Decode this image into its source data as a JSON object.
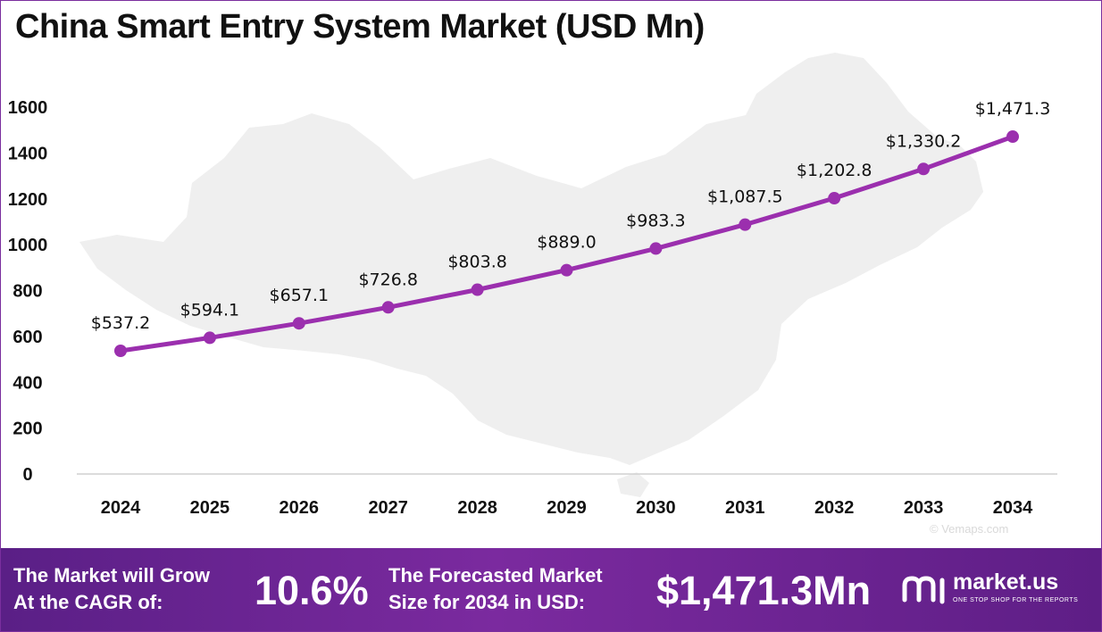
{
  "page": {
    "title": "China Smart Entry System Market (USD Mn)"
  },
  "map_credit": "© Vemaps.com",
  "chart_data": {
    "type": "line",
    "title": "China Smart Entry System Market (USD Mn)",
    "categories": [
      "2024",
      "2025",
      "2026",
      "2027",
      "2028",
      "2029",
      "2030",
      "2031",
      "2032",
      "2033",
      "2034"
    ],
    "values": [
      537.2,
      594.1,
      657.1,
      726.8,
      803.8,
      889.0,
      983.3,
      1087.5,
      1202.8,
      1330.2,
      1471.3
    ],
    "data_labels": [
      "$537.2",
      "$594.1",
      "$657.1",
      "$726.8",
      "$803.8",
      "$889.0",
      "$983.3",
      "$1,087.5",
      "$1,202.8",
      "$1,330.2",
      "$1,471.3"
    ],
    "y_ticks": [
      "0",
      "200",
      "400",
      "600",
      "800",
      "1000",
      "1200",
      "1400",
      "1600"
    ],
    "xlabel": "",
    "ylabel": "",
    "ylim": [
      0,
      1600
    ],
    "grid": false,
    "legend": "none",
    "line_color": "#9b2fae"
  },
  "footer": {
    "cagr_label_line1": "The Market will Grow",
    "cagr_label_line2": "At the CAGR of:",
    "cagr_value": "10.6%",
    "forecast_label_line1": "The Forecasted Market",
    "forecast_label_line2": "Size for 2034 in USD:",
    "forecast_value": "$1,471.3Mn",
    "brand_name": "market.us",
    "brand_tagline": "ONE STOP SHOP FOR THE REPORTS",
    "background_color": "#6a2494",
    "brand_icon": "market-us-logo-icon"
  }
}
